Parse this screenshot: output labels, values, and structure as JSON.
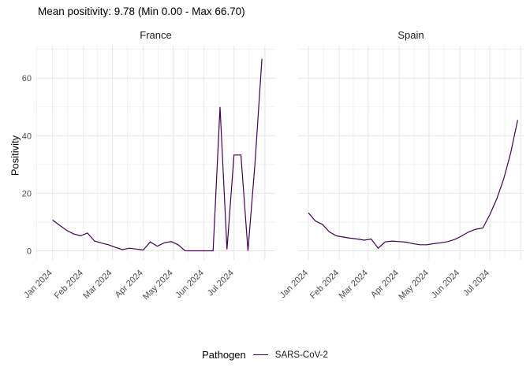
{
  "title": "Mean positivity: 9.78 (Min 0.00 - Max 66.70)",
  "legend": {
    "title": "Pathogen",
    "items": [
      {
        "label": "SARS-CoV-2",
        "color": "#440154"
      }
    ]
  },
  "colors": {
    "line": "#440154",
    "grid_major": "#e6e6e6",
    "grid_minor": "#f2f2f2",
    "tick_label": "#4d4d4d",
    "text": "#000000",
    "background": "#ffffff"
  },
  "chart_data": {
    "type": "line",
    "title": "Mean positivity: 9.78 (Min 0.00 - Max 66.70)",
    "ylabel": "Positivity",
    "xlabel": "",
    "ylim": [
      0,
      70
    ],
    "y_ticks": [
      0,
      20,
      40,
      60
    ],
    "y_minor": [
      10,
      30,
      50,
      70
    ],
    "grid": true,
    "legend_position": "bottom",
    "legend_title": "Pathogen",
    "x_tick_labels": [
      "Jan 2024",
      "Feb 2024",
      "Mar 2024",
      "Apr 2024",
      "May 2024",
      "Jun 2024",
      "Jul 2024"
    ],
    "x_tick_days": [
      0,
      31,
      60,
      91,
      121,
      152,
      182
    ],
    "x_minor_days": [
      -16,
      15,
      45,
      75,
      106,
      136,
      167,
      197
    ],
    "x_unlabeled_major_days": [
      213
    ],
    "facets": [
      {
        "name": "France",
        "series": [
          {
            "name": "SARS-CoV-2",
            "x_days": [
              0,
              7,
              14,
              21,
              28,
              35,
              42,
              49,
              56,
              63,
              70,
              77,
              84,
              91,
              98,
              105,
              112,
              119,
              126,
              133,
              140,
              147,
              154,
              161,
              168,
              175,
              182,
              189,
              196,
              203,
              210
            ],
            "values": [
              10.7,
              8.9,
              7.1,
              5.9,
              5.2,
              6.2,
              3.4,
              2.7,
              2.1,
              1.2,
              0.4,
              0.9,
              0.6,
              0.3,
              3.1,
              1.6,
              2.8,
              3.2,
              2.1,
              0,
              0,
              0,
              0,
              0,
              50,
              0.5,
              33.3,
              33.3,
              0,
              30,
              66.7
            ]
          }
        ]
      },
      {
        "name": "Spain",
        "series": [
          {
            "name": "SARS-CoV-2",
            "x_days": [
              0,
              7,
              14,
              21,
              28,
              35,
              42,
              49,
              56,
              63,
              70,
              77,
              84,
              91,
              98,
              105,
              112,
              119,
              126,
              133,
              140,
              147,
              154,
              161,
              168,
              175,
              182,
              189,
              196,
              203,
              210
            ],
            "values": [
              13.2,
              10.4,
              9.2,
              6.6,
              5.2,
              4.8,
              4.4,
              4.1,
              3.7,
              4.1,
              0.9,
              3.1,
              3.4,
              3.2,
              3.0,
              2.5,
              2.1,
              2.1,
              2.5,
              2.8,
              3.2,
              4.0,
              5.2,
              6.6,
              7.5,
              7.9,
              12.5,
              18,
              25,
              34,
              45.5
            ]
          }
        ]
      }
    ]
  }
}
